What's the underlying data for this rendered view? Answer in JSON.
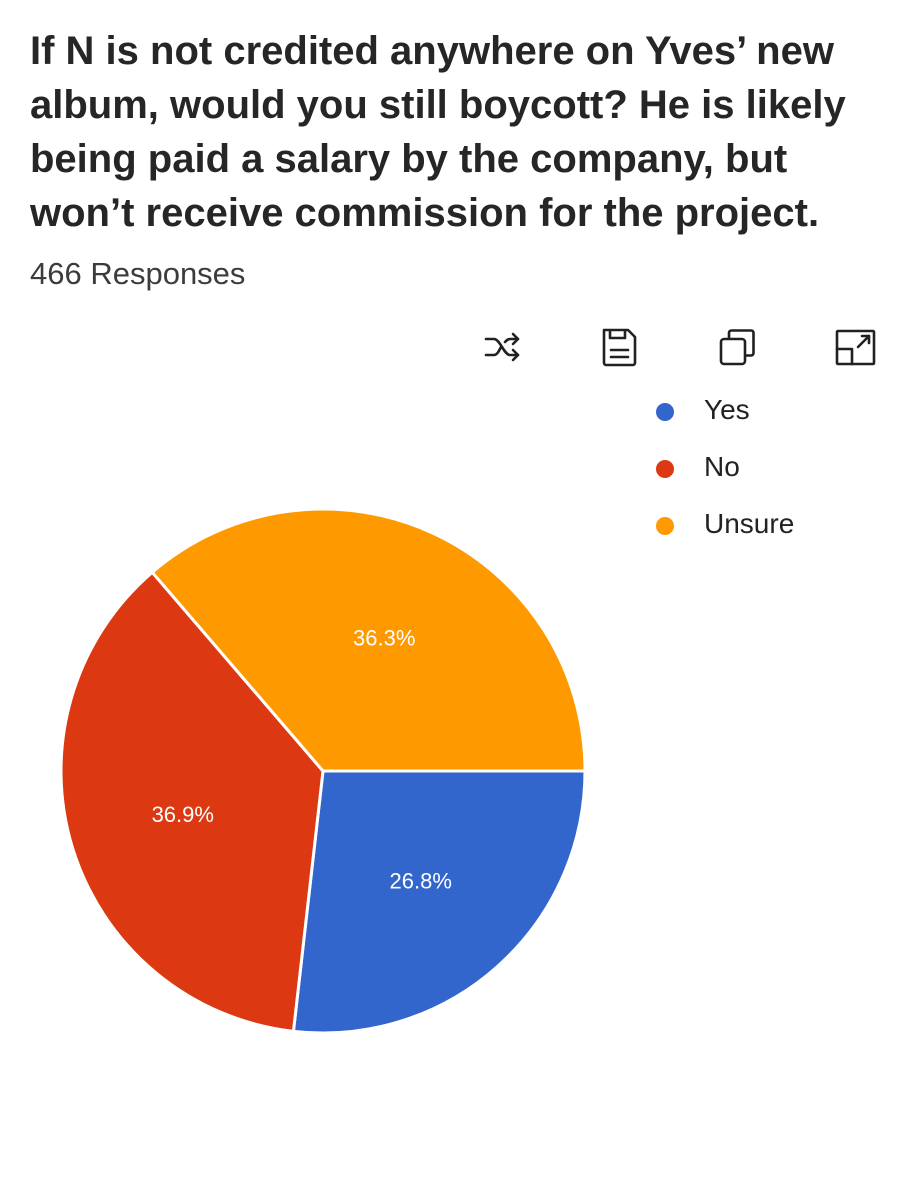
{
  "question": "If N is not credited anywhere on Yves’ new album, would you still boycott? He is likely being paid a salary by the company, but won’t receive commission for the project.",
  "response_count": "466 Responses",
  "toolbar": {
    "icons": [
      "shuffle-icon",
      "save-icon",
      "copy-icon",
      "expand-icon"
    ]
  },
  "chart_data": {
    "type": "pie",
    "categories": [
      "Yes",
      "No",
      "Unsure"
    ],
    "values": [
      26.8,
      36.9,
      36.3
    ],
    "labels": [
      "26.8%",
      "36.9%",
      "36.3%"
    ],
    "colors": [
      "#3366cc",
      "#dc3912",
      "#ff9900"
    ],
    "legend": {
      "position": "top-right",
      "entries": [
        "Yes",
        "No",
        "Unsure"
      ]
    }
  }
}
